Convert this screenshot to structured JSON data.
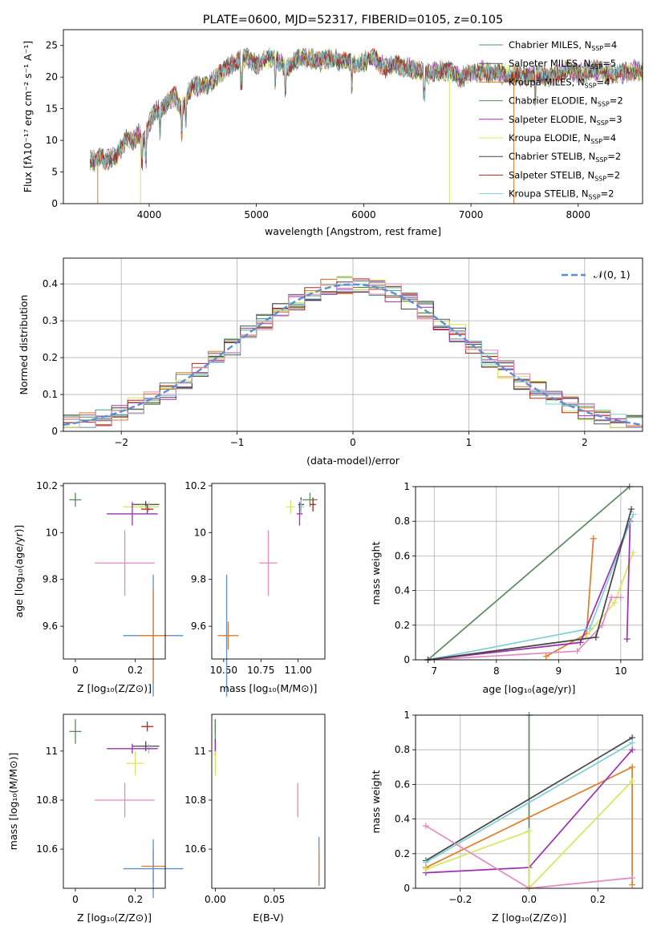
{
  "chart_data": [
    {
      "type": "line",
      "title": "PLATE=0600, MJD=52317, FIBERID=0105, z=0.105",
      "xlabel": "wavelength [Angstrom, rest frame]",
      "ylabel": "Flux [fλ10⁻¹⁷ erg cm⁻² s⁻¹ A⁻¹]",
      "xlim": [
        3200,
        8600
      ],
      "ylim": [
        0,
        27.5
      ],
      "xticks": [
        4000,
        5000,
        6000,
        7000,
        8000
      ],
      "yticks": [
        0,
        5,
        10,
        15,
        20,
        25
      ],
      "legend": "right",
      "grid": false,
      "spectrum": {
        "x": [
          3450,
          3500,
          3550,
          3600,
          3650,
          3700,
          3750,
          3800,
          3850,
          3900,
          3950,
          4000,
          4050,
          4100,
          4150,
          4200,
          4250,
          4300,
          4350,
          4400,
          4500,
          4600,
          4700,
          4800,
          4900,
          5000,
          5100,
          5200,
          5300,
          5400,
          5500,
          5600,
          5700,
          5800,
          5900,
          6000,
          6100,
          6200,
          6300,
          6400,
          6500,
          6600,
          6700,
          6800,
          6900,
          7000,
          7100,
          7200,
          7300,
          7400,
          7500,
          7600,
          7700,
          7800,
          7900,
          8000,
          8100,
          8200,
          8300,
          8400,
          8500,
          8600
        ],
        "y": [
          7.0,
          6.5,
          7.5,
          6.8,
          7.2,
          7.6,
          9.0,
          10.5,
          10.0,
          11.0,
          9.5,
          12.5,
          14.5,
          15.0,
          15.5,
          16.5,
          17.0,
          14.5,
          17.0,
          18.5,
          18.5,
          19.5,
          21.0,
          22.5,
          23.0,
          22.0,
          23.0,
          22.5,
          21.5,
          23.0,
          23.0,
          22.5,
          23.0,
          22.5,
          22.0,
          22.5,
          23.0,
          21.5,
          22.0,
          21.5,
          21.0,
          20.5,
          21.0,
          21.0,
          20.0,
          20.5,
          21.0,
          20.5,
          20.5,
          20.5,
          20.0,
          20.5,
          20.0,
          20.5,
          21.0,
          20.5,
          21.0,
          21.0,
          20.5,
          20.5,
          21.0,
          21.0
        ]
      },
      "series": [
        {
          "name": "Chabrier MILES, N",
          "sub": "SSP",
          "suffix": "=4",
          "color": "#4c9a6e"
        },
        {
          "name": "Salpeter MILES, N",
          "sub": "SSP",
          "suffix": "=5",
          "color": "#555555"
        },
        {
          "name": "Kroupa MILES, N",
          "sub": "SSP",
          "suffix": "=4",
          "color": "#e07c27"
        },
        {
          "name": "Chabrier ELODIE, N",
          "sub": "SSP",
          "suffix": "=2",
          "color": "#5a8a5e"
        },
        {
          "name": "Salpeter ELODIE, N",
          "sub": "SSP",
          "suffix": "=3",
          "color": "#9b30b0"
        },
        {
          "name": "Kroupa ELODIE, N",
          "sub": "SSP",
          "suffix": "=4",
          "color": "#d4e85a"
        },
        {
          "name": "Chabrier STELIB, N",
          "sub": "SSP",
          "suffix": "=2",
          "color": "#444444"
        },
        {
          "name": "Salpeter STELIB, N",
          "sub": "SSP",
          "suffix": "=2",
          "color": "#b22222"
        },
        {
          "name": "Kroupa STELIB, N",
          "sub": "SSP",
          "suffix": "=2",
          "color": "#7fd0d8"
        }
      ]
    },
    {
      "type": "histogram",
      "xlabel": "(data-model)/error",
      "ylabel": "Normed distribution",
      "xlim": [
        -2.5,
        2.5
      ],
      "ylim": [
        0,
        0.47
      ],
      "xticks": [
        -2,
        -1,
        0,
        1,
        2
      ],
      "yticks": [
        0.0,
        0.1,
        0.2,
        0.3,
        0.4
      ],
      "grid": true,
      "legend": "top-right",
      "normal_label": "𝒩(0, 1)",
      "normal_color": "#5b8ed6",
      "bins": 36
    },
    {
      "type": "scatter",
      "xlabel": "Z [log₁₀(Z/Z⊙)]",
      "ylabel": "age  [log₁₀(age/yr)]",
      "xlim": [
        -0.04,
        0.3
      ],
      "ylim": [
        9.46,
        10.21
      ],
      "xticks": [
        0.0,
        0.2
      ],
      "yticks": [
        9.6,
        9.8,
        10.0,
        10.2
      ],
      "points": [
        {
          "x": 0.0,
          "y": 10.14,
          "xerr": 0.02,
          "yerr": 0.03,
          "color": "#5a8a5e"
        },
        {
          "x": 0.235,
          "y": 10.12,
          "xerr": 0.045,
          "yerr": 0.015,
          "color": "#444444"
        },
        {
          "x": 0.245,
          "y": 10.11,
          "xerr": 0.03,
          "yerr": 0.02,
          "color": "#7fd0d8"
        },
        {
          "x": 0.22,
          "y": 10.11,
          "xerr": 0.06,
          "yerr": 0.01,
          "color": "#d4e85a"
        },
        {
          "x": 0.24,
          "y": 10.1,
          "xerr": 0.02,
          "yerr": 0.02,
          "color": "#b22222"
        },
        {
          "x": 0.19,
          "y": 10.08,
          "xerr": 0.085,
          "yerr": 0.05,
          "color": "#9b30b0"
        },
        {
          "x": 0.165,
          "y": 9.87,
          "xerr": 0.1,
          "yerr": 0.14,
          "color": "#e38ac0"
        },
        {
          "x": 0.26,
          "y": 9.56,
          "xerr": 0.1,
          "yerr": 0.26,
          "color": "#5b8ed6"
        },
        {
          "x": 0.26,
          "y": 9.56,
          "xerr": 0.05,
          "yerr": 0.2,
          "color": "#e07c27"
        }
      ]
    },
    {
      "type": "scatter",
      "xlabel": "mass [log₁₀(M/M⊙)]",
      "ylabel": "",
      "xlim": [
        10.42,
        11.18
      ],
      "ylim": [
        9.46,
        10.21
      ],
      "xticks": [
        10.5,
        10.75,
        11.0
      ],
      "xticklabels": [
        "10.50",
        "10.75",
        "11.00"
      ],
      "yticks": [
        9.6,
        9.8,
        10.0,
        10.2
      ],
      "points": [
        {
          "x": 11.08,
          "y": 10.14,
          "xerr": 0.05,
          "yerr": 0.03,
          "color": "#5a8a5e"
        },
        {
          "x": 11.1,
          "y": 10.12,
          "xerr": 0.02,
          "yerr": 0.03,
          "color": "#b22222"
        },
        {
          "x": 11.02,
          "y": 10.12,
          "xerr": 0.02,
          "yerr": 0.03,
          "color": "#444444"
        },
        {
          "x": 11.02,
          "y": 10.11,
          "xerr": 0.02,
          "yerr": 0.03,
          "color": "#7fd0d8"
        },
        {
          "x": 10.95,
          "y": 10.11,
          "xerr": 0.03,
          "yerr": 0.03,
          "color": "#d4e85a"
        },
        {
          "x": 11.01,
          "y": 10.08,
          "xerr": 0.02,
          "yerr": 0.05,
          "color": "#9b30b0"
        },
        {
          "x": 10.8,
          "y": 9.87,
          "xerr": 0.06,
          "yerr": 0.14,
          "color": "#e38ac0"
        },
        {
          "x": 10.52,
          "y": 9.56,
          "xerr": 0.015,
          "yerr": 0.26,
          "color": "#5b8ed6"
        },
        {
          "x": 10.53,
          "y": 9.56,
          "xerr": 0.07,
          "yerr": 0.06,
          "color": "#e07c27"
        }
      ]
    },
    {
      "type": "line",
      "xlabel": "age  [log₁₀(age/yr)]",
      "ylabel": "mass weight",
      "xlim": [
        6.7,
        10.35
      ],
      "ylim": [
        0,
        1.0
      ],
      "xticks": [
        7,
        8,
        9,
        10
      ],
      "yticks": [
        0.0,
        0.2,
        0.4,
        0.6,
        0.8,
        1.0
      ],
      "grid": true,
      "series": [
        {
          "color": "#5a8a5e",
          "x": [
            6.9,
            10.14
          ],
          "y": [
            0.0,
            1.0
          ]
        },
        {
          "color": "#e07c27",
          "x": [
            8.8,
            9.45,
            9.56,
            9.56
          ],
          "y": [
            0.02,
            0.15,
            0.7,
            0.7
          ]
        },
        {
          "color": "#d4e85a",
          "x": [
            6.9,
            9.4,
            9.9,
            10.2
          ],
          "y": [
            0.0,
            0.12,
            0.33,
            0.62
          ]
        },
        {
          "color": "#e38ac0",
          "x": [
            6.9,
            9.3,
            9.7,
            9.85,
            10.0
          ],
          "y": [
            0.0,
            0.05,
            0.2,
            0.36,
            0.36
          ]
        },
        {
          "color": "#9b30b0",
          "x": [
            6.9,
            9.35,
            10.15,
            10.1,
            10.1
          ],
          "y": [
            0.0,
            0.1,
            0.8,
            0.12,
            0.12
          ]
        },
        {
          "color": "#7fd0d8",
          "x": [
            6.9,
            9.5,
            10.2
          ],
          "y": [
            0.0,
            0.18,
            0.84
          ]
        },
        {
          "color": "#444444",
          "x": [
            6.9,
            9.6,
            10.17
          ],
          "y": [
            0.0,
            0.13,
            0.87
          ]
        }
      ]
    },
    {
      "type": "scatter",
      "xlabel": "Z [log₁₀(Z/Z⊙)]",
      "ylabel": "mass [log₁₀(M/M⊙)]",
      "xlim": [
        -0.04,
        0.3
      ],
      "ylim": [
        10.44,
        11.15
      ],
      "xticks": [
        0.0,
        0.2
      ],
      "yticks": [
        10.6,
        10.8,
        11.0
      ],
      "points": [
        {
          "x": 0.0,
          "y": 11.08,
          "xerr": 0.02,
          "yerr": 0.05,
          "color": "#5a8a5e"
        },
        {
          "x": 0.24,
          "y": 11.1,
          "xerr": 0.02,
          "yerr": 0.02,
          "color": "#b22222"
        },
        {
          "x": 0.235,
          "y": 11.02,
          "xerr": 0.045,
          "yerr": 0.02,
          "color": "#444444"
        },
        {
          "x": 0.245,
          "y": 11.01,
          "xerr": 0.02,
          "yerr": 0.02,
          "color": "#7fd0d8"
        },
        {
          "x": 0.19,
          "y": 11.01,
          "xerr": 0.085,
          "yerr": 0.02,
          "color": "#9b30b0"
        },
        {
          "x": 0.2,
          "y": 10.95,
          "xerr": 0.03,
          "yerr": 0.05,
          "color": "#d4e85a"
        },
        {
          "x": 0.165,
          "y": 10.8,
          "xerr": 0.1,
          "yerr": 0.07,
          "color": "#e38ac0"
        },
        {
          "x": 0.26,
          "y": 10.53,
          "xerr": 0.04,
          "yerr": 0.07,
          "color": "#e07c27"
        },
        {
          "x": 0.26,
          "y": 10.52,
          "xerr": 0.1,
          "yerr": 0.12,
          "color": "#5b8ed6"
        }
      ]
    },
    {
      "type": "scatter",
      "xlabel": "E(B-V)",
      "ylabel": "",
      "xlim": [
        -0.003,
        0.093
      ],
      "ylim": [
        10.44,
        11.15
      ],
      "xticks": [
        0.0,
        0.05
      ],
      "xticklabels": [
        "0.00",
        "0.05"
      ],
      "yticks": [
        10.6,
        10.8,
        11.0
      ],
      "points": [
        {
          "x": 0.0,
          "y": 11.1,
          "xerr": 0,
          "yerr": 0.03,
          "color": "#b22222"
        },
        {
          "x": 0.0,
          "y": 11.08,
          "xerr": 0,
          "yerr": 0.05,
          "color": "#5a8a5e"
        },
        {
          "x": 0.0,
          "y": 11.02,
          "xerr": 0,
          "yerr": 0.03,
          "color": "#444444"
        },
        {
          "x": 0.0,
          "y": 11.01,
          "xerr": 0,
          "yerr": 0.03,
          "color": "#7fd0d8"
        },
        {
          "x": 0.0,
          "y": 11.01,
          "xerr": 0,
          "yerr": 0.03,
          "color": "#9b30b0"
        },
        {
          "x": 0.0,
          "y": 10.95,
          "xerr": 0,
          "yerr": 0.05,
          "color": "#d4e85a"
        },
        {
          "x": 0.07,
          "y": 10.8,
          "xerr": 0,
          "yerr": 0.07,
          "color": "#e38ac0"
        },
        {
          "x": 0.088,
          "y": 10.55,
          "xerr": 0,
          "yerr": 0.1,
          "color": "#5b8ed6"
        },
        {
          "x": 0.088,
          "y": 10.53,
          "xerr": 0,
          "yerr": 0.07,
          "color": "#e07c27"
        }
      ]
    },
    {
      "type": "line",
      "xlabel": "Z [log₁₀(Z/Z⊙)]",
      "ylabel": "mass weight",
      "xlim": [
        -0.33,
        0.33
      ],
      "ylim": [
        0,
        1.0
      ],
      "xticks": [
        -0.2,
        0.0,
        0.2
      ],
      "xticklabels": [
        "−0.2",
        "0.0",
        "0.2"
      ],
      "yticks": [
        0.0,
        0.2,
        0.4,
        0.6,
        0.8,
        1.0
      ],
      "grid": true,
      "series": [
        {
          "color": "#5a8a5e",
          "x": [
            0.0,
            0.0
          ],
          "y": [
            0.0,
            1.0
          ]
        },
        {
          "color": "#444444",
          "x": [
            -0.3,
            0.3
          ],
          "y": [
            0.16,
            0.87
          ]
        },
        {
          "color": "#7fd0d8",
          "x": [
            -0.3,
            0.3
          ],
          "y": [
            0.15,
            0.84
          ]
        },
        {
          "color": "#e07c27",
          "x": [
            -0.3,
            0.3,
            0.3
          ],
          "y": [
            0.12,
            0.7,
            0.02
          ]
        },
        {
          "color": "#9b30b0",
          "x": [
            -0.3,
            0.0,
            0.3
          ],
          "y": [
            0.09,
            0.12,
            0.8
          ]
        },
        {
          "color": "#d4e85a",
          "x": [
            -0.3,
            0.0,
            0.0,
            0.3
          ],
          "y": [
            0.11,
            0.33,
            0.0,
            0.62
          ]
        },
        {
          "color": "#e38ac0",
          "x": [
            -0.3,
            0.0,
            0.3
          ],
          "y": [
            0.36,
            0.0,
            0.06
          ]
        }
      ]
    }
  ]
}
